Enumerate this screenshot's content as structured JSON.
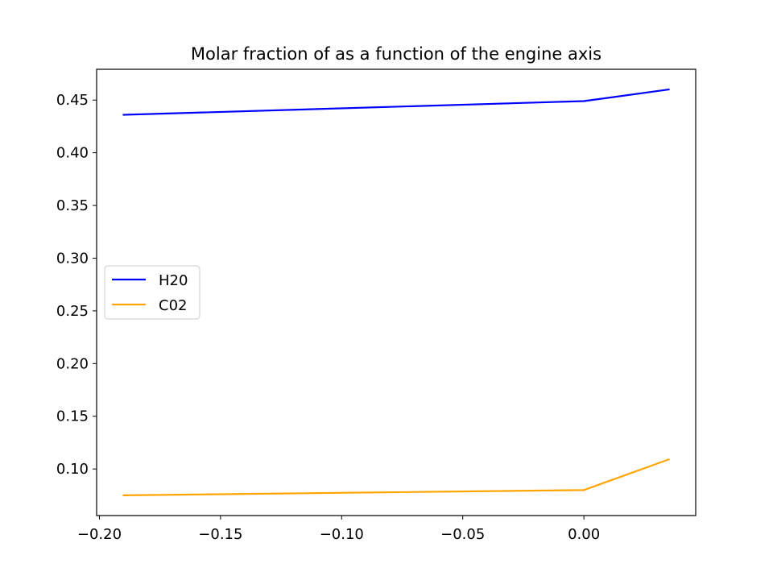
{
  "chart_data": {
    "type": "line",
    "title": "Molar fraction of as a function of the engine axis",
    "xlabel": "",
    "ylabel": "",
    "x": [
      -0.19,
      0.0,
      0.035
    ],
    "series": [
      {
        "name": "H20",
        "color": "#0000ff",
        "values": [
          0.436,
          0.449,
          0.46
        ]
      },
      {
        "name": "C02",
        "color": "#ffa500",
        "values": [
          0.075,
          0.08,
          0.109
        ]
      }
    ],
    "xlim": [
      -0.20115,
      0.04615
    ],
    "ylim": [
      0.0558,
      0.4792
    ],
    "xticks": [
      -0.2,
      -0.15,
      -0.1,
      -0.05,
      0.0
    ],
    "xtick_labels": [
      "−0.20",
      "−0.15",
      "−0.10",
      "−0.05",
      "0.00"
    ],
    "yticks": [
      0.1,
      0.15,
      0.2,
      0.25,
      0.3,
      0.35,
      0.4,
      0.45
    ],
    "ytick_labels": [
      "0.10",
      "0.15",
      "0.20",
      "0.25",
      "0.30",
      "0.35",
      "0.40",
      "0.45"
    ],
    "grid": false,
    "legend_position": "center-left"
  }
}
